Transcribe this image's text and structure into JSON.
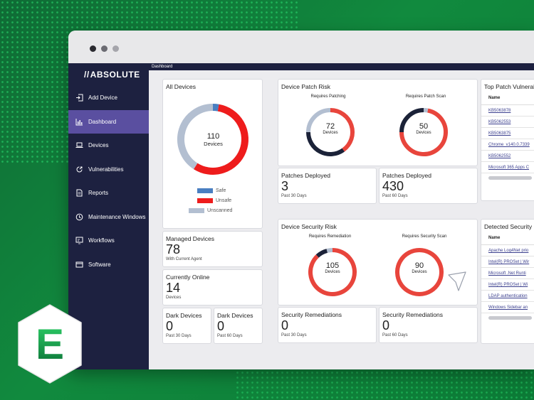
{
  "colors": {
    "green_bg": "#118a3e",
    "sidebar_bg": "#1d2140",
    "sidebar_active": "#5a4fa0",
    "safe": "#4a7fc1",
    "unsafe": "#ee1c1c",
    "unscanned": "#b3bfd1",
    "risk_red": "#e8453c",
    "risk_navy": "#1b2238",
    "risk_grey": "#b3bfd1"
  },
  "brand": {
    "logo_text": "ABSOLUTE",
    "logo_slash": "//",
    "badge_letter": "E"
  },
  "topbar": {
    "title": "Dashboard"
  },
  "sidebar": {
    "items": [
      {
        "label": "Add Device",
        "icon": "add-device-icon"
      },
      {
        "label": "Dashboard",
        "icon": "dashboard-icon",
        "active": true
      },
      {
        "label": "Devices",
        "icon": "laptop-icon"
      },
      {
        "label": "Vulnerabilities",
        "icon": "vulnerability-icon"
      },
      {
        "label": "Reports",
        "icon": "report-icon"
      },
      {
        "label": "Maintenance Windows",
        "icon": "clock-icon"
      },
      {
        "label": "Workflows",
        "icon": "workflow-icon"
      },
      {
        "label": "Software",
        "icon": "software-icon"
      }
    ]
  },
  "all_devices": {
    "title": "All Devices",
    "total": "110",
    "total_label": "Devices",
    "chart": {
      "safe": 3,
      "unsafe": 62,
      "unscanned": 45
    },
    "legend": [
      "Safe",
      "Unsafe",
      "Unscanned"
    ]
  },
  "managed": {
    "title": "Managed Devices",
    "value": "78",
    "sub": "With Current Agent"
  },
  "online": {
    "title": "Currently Online",
    "value": "14",
    "sub": "Devices"
  },
  "dark30": {
    "title": "Dark Devices",
    "value": "0",
    "sub": "Past 30 Days"
  },
  "dark60": {
    "title": "Dark Devices",
    "value": "0",
    "sub": "Past 60 Days"
  },
  "patch_risk": {
    "title": "Device Patch Risk",
    "patching": {
      "label": "Requires Patching",
      "value": "72",
      "unit": "Devices"
    },
    "scan": {
      "label": "Requires Patch Scan",
      "value": "50",
      "unit": "Devices"
    }
  },
  "patches30": {
    "title": "Patches Deployed",
    "value": "3",
    "sub": "Past 30 Days"
  },
  "patches60": {
    "title": "Patches Deployed",
    "value": "430",
    "sub": "Past 60 Days"
  },
  "security_risk": {
    "title": "Device Security Risk",
    "remediation": {
      "label": "Requires Remediation",
      "value": "105",
      "unit": "Devices"
    },
    "scan": {
      "label": "Requires Security Scan",
      "value": "90",
      "unit": "Devices"
    }
  },
  "remed30": {
    "title": "Security Remediations",
    "value": "0",
    "sub": "Past 30 Days"
  },
  "remed60": {
    "title": "Security Remediations",
    "value": "0",
    "sub": "Past 60 Days"
  },
  "top_patch": {
    "title": "Top Patch Vulnerab",
    "header": "Name",
    "rows": [
      "KB5063878",
      "KB5062553",
      "KB5063875",
      "Chrome_v140.0.7339",
      "KB5062552",
      "Microsoft 365 Apps C"
    ]
  },
  "detected": {
    "title": "Detected Security",
    "header": "Name",
    "rows": [
      "Apache Log4Net prio",
      "Intel(R) PROSet | Wir",
      "Microsoft .Net Runti",
      "Intel(R) PROSet | Wi",
      "LDAP authentication",
      "Windows Sidebar an"
    ]
  }
}
